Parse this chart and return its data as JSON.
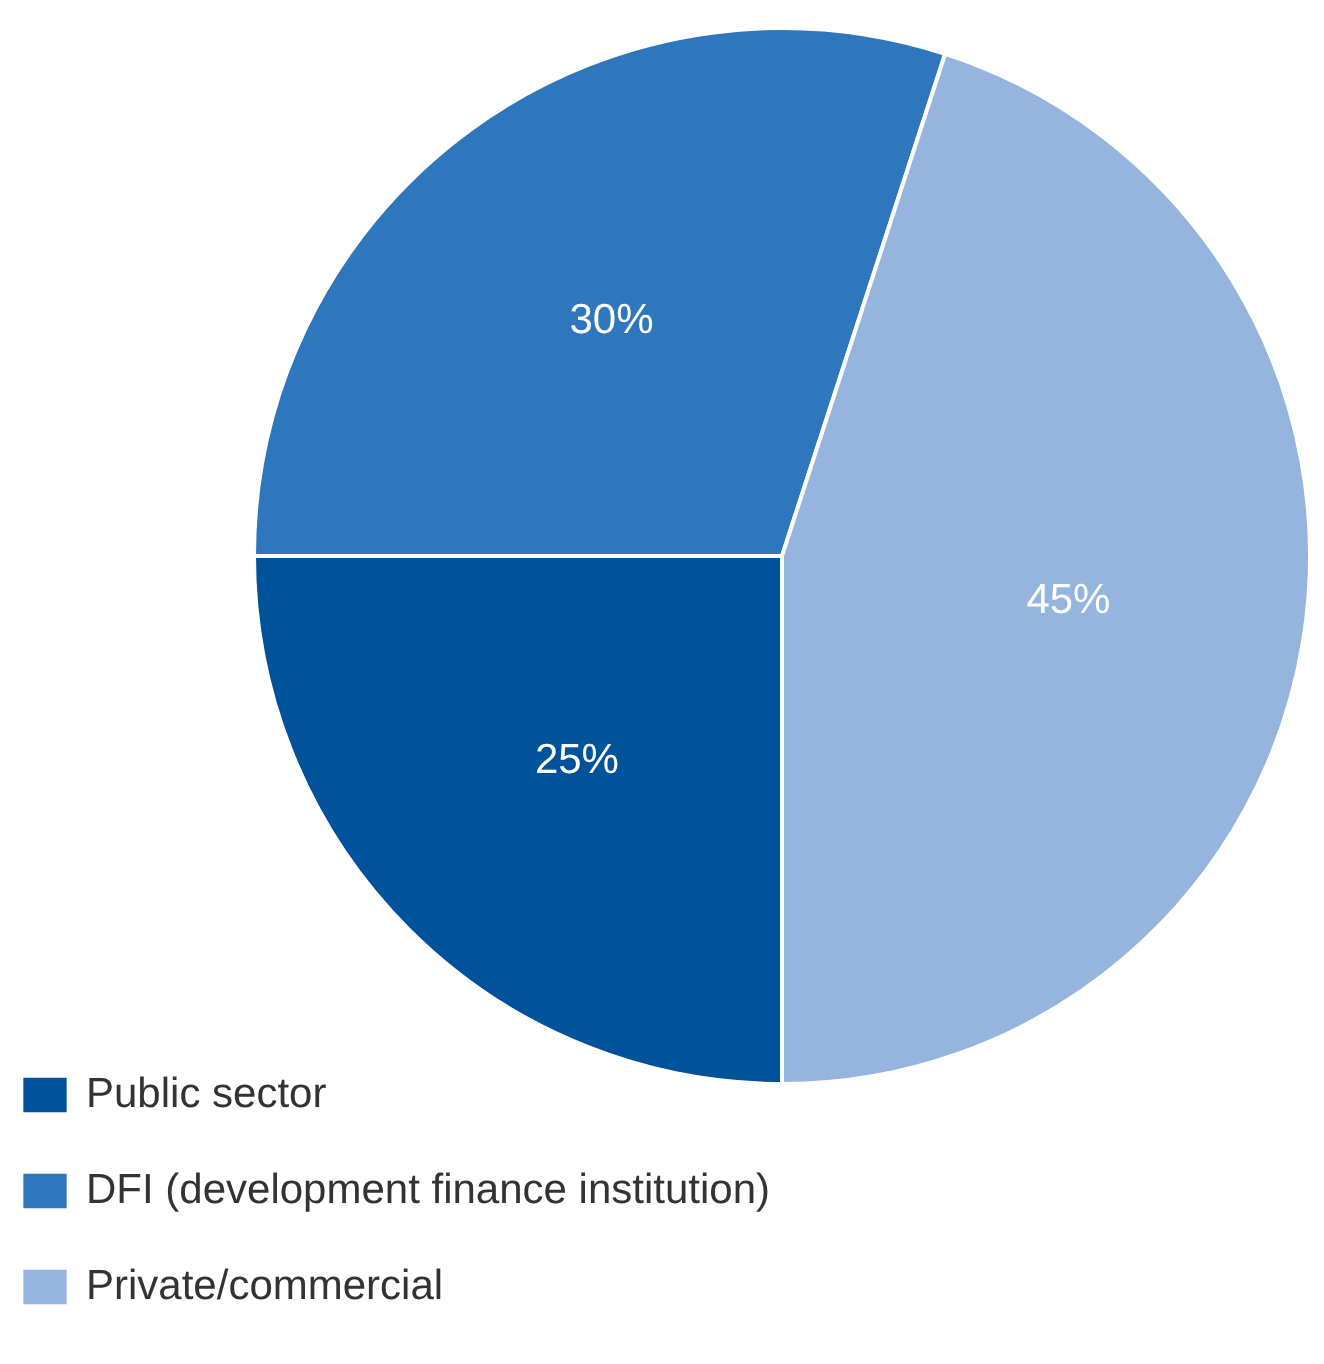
{
  "chart_data": {
    "type": "pie",
    "categories": [
      "Public sector",
      "DFI (development finance institution)",
      "Private/commercial"
    ],
    "values": [
      25,
      30,
      45
    ],
    "colors": [
      "#00529b",
      "#2e77bd",
      "#95b4de"
    ],
    "value_labels": [
      "25%",
      "30%",
      "45%"
    ],
    "legend": "bottom left"
  }
}
